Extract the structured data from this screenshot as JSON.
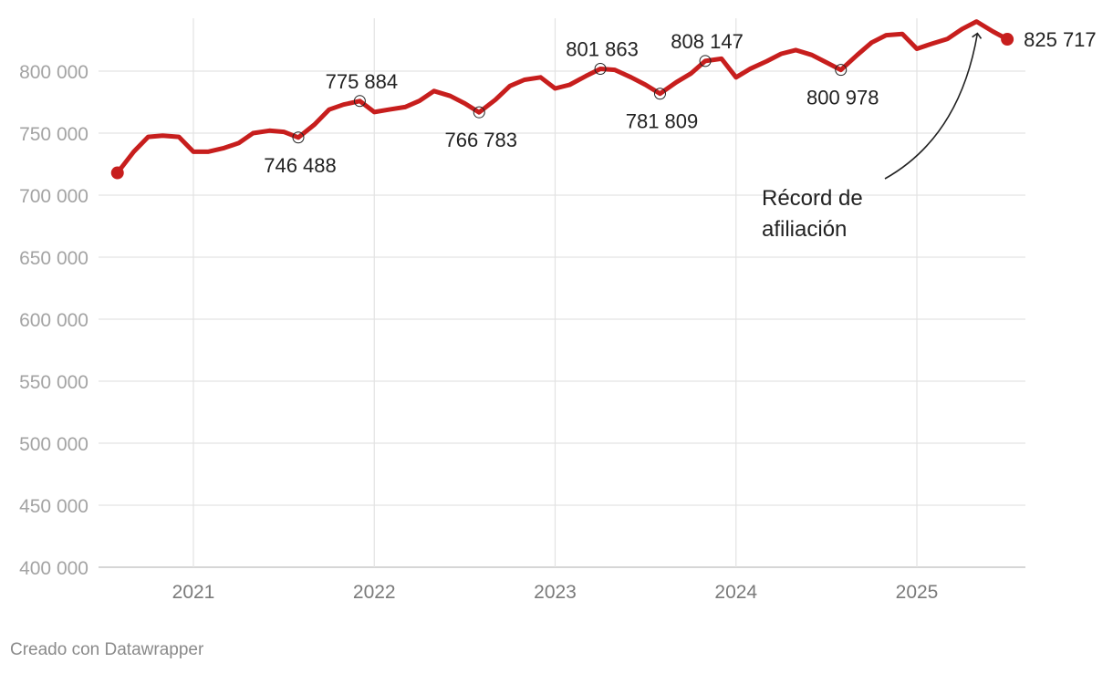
{
  "chart_data": {
    "type": "line",
    "title": "",
    "xlabel": "",
    "ylabel": "",
    "ylim": [
      400000,
      840000
    ],
    "yticks": [
      400000,
      450000,
      500000,
      550000,
      600000,
      650000,
      700000,
      750000,
      800000
    ],
    "ytick_labels": [
      "400 000",
      "450 000",
      "500 000",
      "550 000",
      "600 000",
      "650 000",
      "700 000",
      "750 000",
      "800 000"
    ],
    "xlim": [
      2020.58,
      2025.6
    ],
    "xticks": [
      2021,
      2022,
      2023,
      2024,
      2025
    ],
    "xtick_labels": [
      "2021",
      "2022",
      "2023",
      "2024",
      "2025"
    ],
    "grid": true,
    "color": "#c71e1d",
    "series": [
      {
        "name": "Afiliación",
        "x": [
          2020.58,
          2020.67,
          2020.75,
          2020.83,
          2020.92,
          2021.0,
          2021.08,
          2021.17,
          2021.25,
          2021.33,
          2021.42,
          2021.5,
          2021.58,
          2021.67,
          2021.75,
          2021.83,
          2021.92,
          2022.0,
          2022.08,
          2022.17,
          2022.25,
          2022.33,
          2022.42,
          2022.5,
          2022.58,
          2022.67,
          2022.75,
          2022.83,
          2022.92,
          2023.0,
          2023.08,
          2023.17,
          2023.25,
          2023.33,
          2023.42,
          2023.5,
          2023.58,
          2023.67,
          2023.75,
          2023.83,
          2023.92,
          2024.0,
          2024.08,
          2024.17,
          2024.25,
          2024.33,
          2024.42,
          2024.5,
          2024.58,
          2024.67,
          2024.75,
          2024.83,
          2024.92,
          2025.0,
          2025.08,
          2025.17,
          2025.25,
          2025.33,
          2025.42,
          2025.5
        ],
        "values": [
          718000,
          735000,
          747000,
          748000,
          747000,
          735000,
          735000,
          738000,
          742000,
          750000,
          752000,
          751000,
          746488,
          757000,
          769000,
          773000,
          775884,
          767000,
          769000,
          771000,
          776000,
          784000,
          780000,
          774000,
          766783,
          777000,
          788000,
          793000,
          795000,
          786000,
          789000,
          796000,
          801863,
          801000,
          795000,
          789000,
          781809,
          791000,
          798000,
          808147,
          810000,
          795000,
          802000,
          808000,
          814000,
          817000,
          813000,
          807000,
          800978,
          813000,
          823000,
          829000,
          830000,
          818000,
          822000,
          826000,
          834000,
          840000,
          832000,
          825717
        ]
      }
    ],
    "data_labels": [
      {
        "x": 2021.58,
        "value": 746488,
        "text": "746 488",
        "pos": "below"
      },
      {
        "x": 2021.92,
        "value": 775884,
        "text": "775 884",
        "pos": "above"
      },
      {
        "x": 2022.58,
        "value": 766783,
        "text": "766 783",
        "pos": "below"
      },
      {
        "x": 2023.25,
        "value": 801863,
        "text": "801 863",
        "pos": "above"
      },
      {
        "x": 2023.58,
        "value": 781809,
        "text": "781 809",
        "pos": "below"
      },
      {
        "x": 2023.83,
        "value": 808147,
        "text": "808 147",
        "pos": "above"
      },
      {
        "x": 2024.58,
        "value": 800978,
        "text": "800 978",
        "pos": "below"
      }
    ],
    "end_label": {
      "text": "825 717"
    },
    "annotation": {
      "lines": [
        "Récord de",
        "afiliación"
      ],
      "x": 2025.33,
      "value": 840000
    }
  },
  "footer": {
    "credit": "Creado con Datawrapper"
  }
}
